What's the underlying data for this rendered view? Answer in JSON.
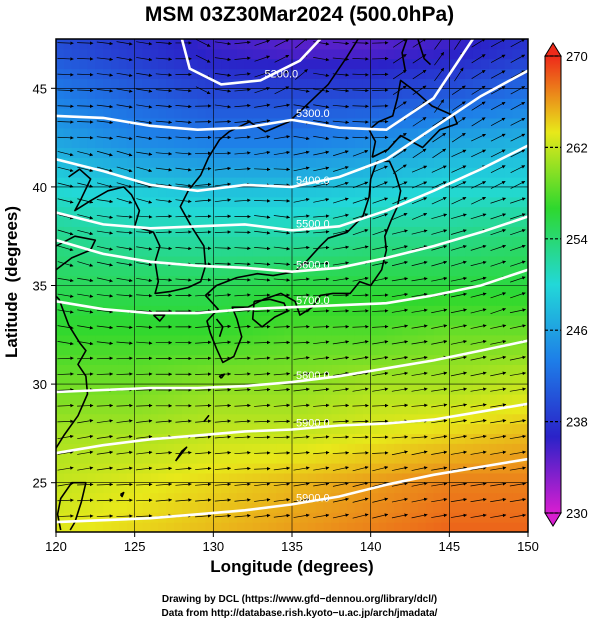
{
  "chart_data": {
    "type": "heatmap",
    "title": "MSM 03Z30Mar2024 (500.0hPa)",
    "xlabel": "Longitude (degrees)",
    "ylabel": "Latitude  (degrees)",
    "xlim": [
      120,
      150
    ],
    "ylim": [
      22.5,
      47.5
    ],
    "x_ticks": [
      120,
      125,
      130,
      135,
      140,
      145,
      150
    ],
    "y_ticks": [
      25,
      30,
      35,
      40,
      45
    ],
    "grid": true,
    "field": "temperature",
    "colorbar": {
      "min": 230,
      "max": 270,
      "ticks": [
        230,
        238,
        246,
        254,
        262,
        270
      ],
      "colors": [
        "#d81ed0",
        "#2a22c8",
        "#1e7ee8",
        "#22d8d8",
        "#2ed82e",
        "#e8e81a",
        "#ee2a1a"
      ]
    },
    "temperature_field": [
      {
        "lat": 47.0,
        "values": [
          240,
          238,
          236,
          235,
          235,
          236,
          238
        ]
      },
      {
        "lat": 45.0,
        "values": [
          243,
          241,
          239,
          239,
          239,
          240,
          242
        ]
      },
      {
        "lat": 42.5,
        "values": [
          246,
          244,
          243,
          243,
          244,
          246,
          247
        ]
      },
      {
        "lat": 40.0,
        "values": [
          250,
          249,
          248,
          248,
          249,
          250,
          250
        ]
      },
      {
        "lat": 37.5,
        "values": [
          253,
          252,
          252,
          252,
          253,
          253,
          254
        ]
      },
      {
        "lat": 35.0,
        "values": [
          255,
          255,
          255,
          256,
          256,
          256,
          256
        ]
      },
      {
        "lat": 32.5,
        "values": [
          257,
          257,
          257,
          258,
          258,
          259,
          259
        ]
      },
      {
        "lat": 30.0,
        "values": [
          259,
          259,
          260,
          260,
          261,
          261,
          262
        ]
      },
      {
        "lat": 27.5,
        "values": [
          261,
          261,
          262,
          262,
          263,
          264,
          265
        ]
      },
      {
        "lat": 25.0,
        "values": [
          262,
          263,
          264,
          265,
          266,
          267,
          267
        ]
      },
      {
        "lat": 22.5,
        "values": [
          263,
          264,
          265,
          266,
          267,
          268,
          268
        ]
      }
    ],
    "field_lons": [
      120,
      125,
      130,
      135,
      140,
      145,
      150
    ],
    "height_contours": [
      {
        "label": "5200.0",
        "points": [
          [
            128.0,
            47.5
          ],
          [
            128.5,
            46.0
          ],
          [
            130.5,
            45.2
          ],
          [
            133.0,
            45.4
          ],
          [
            135.5,
            46.4
          ],
          [
            136.8,
            47.5
          ]
        ]
      },
      {
        "label": "5300.0",
        "points": [
          [
            120.0,
            43.6
          ],
          [
            123.0,
            43.5
          ],
          [
            126.0,
            43.1
          ],
          [
            129.0,
            42.9
          ],
          [
            132.0,
            43.0
          ],
          [
            135.0,
            43.4
          ],
          [
            138.0,
            43.0
          ],
          [
            141.0,
            42.9
          ],
          [
            144.0,
            44.5
          ],
          [
            146.5,
            47.5
          ]
        ]
      },
      {
        "label": "5400.0",
        "points": [
          [
            120.0,
            41.4
          ],
          [
            123.0,
            40.8
          ],
          [
            126.0,
            40.1
          ],
          [
            129.0,
            39.8
          ],
          [
            132.0,
            40.1
          ],
          [
            135.0,
            40.0
          ],
          [
            138.0,
            40.5
          ],
          [
            141.0,
            41.4
          ],
          [
            144.0,
            43.0
          ],
          [
            147.0,
            44.6
          ],
          [
            150.0,
            45.9
          ]
        ]
      },
      {
        "label": "5500.0",
        "points": [
          [
            120.0,
            38.7
          ],
          [
            123.0,
            38.1
          ],
          [
            126.0,
            37.9
          ],
          [
            129.0,
            38.0
          ],
          [
            132.0,
            38.1
          ],
          [
            135.0,
            37.8
          ],
          [
            138.0,
            38.0
          ],
          [
            141.0,
            38.8
          ],
          [
            144.0,
            39.8
          ],
          [
            147.0,
            40.9
          ],
          [
            150.0,
            42.1
          ]
        ]
      },
      {
        "label": "5600.0",
        "points": [
          [
            120.0,
            37.3
          ],
          [
            123.0,
            36.6
          ],
          [
            126.0,
            36.2
          ],
          [
            129.0,
            36.0
          ],
          [
            132.0,
            35.9
          ],
          [
            135.0,
            35.7
          ],
          [
            138.0,
            35.9
          ],
          [
            141.0,
            36.4
          ],
          [
            144.0,
            37.0
          ],
          [
            147.0,
            37.7
          ],
          [
            150.0,
            38.5
          ]
        ]
      },
      {
        "label": "5700.0",
        "points": [
          [
            120.0,
            34.2
          ],
          [
            123.0,
            33.8
          ],
          [
            126.0,
            33.6
          ],
          [
            129.0,
            33.6
          ],
          [
            132.0,
            33.8
          ],
          [
            135.0,
            33.9
          ],
          [
            138.0,
            34.0
          ],
          [
            141.0,
            34.1
          ],
          [
            144.0,
            34.5
          ],
          [
            147.0,
            35.0
          ],
          [
            150.0,
            35.8
          ]
        ]
      },
      {
        "label": "5800.0",
        "points": [
          [
            120.0,
            29.6
          ],
          [
            123.0,
            29.7
          ],
          [
            126.0,
            29.8
          ],
          [
            129.0,
            29.8
          ],
          [
            132.0,
            29.9
          ],
          [
            135.0,
            30.1
          ],
          [
            138.0,
            30.4
          ],
          [
            141.0,
            30.8
          ],
          [
            144.0,
            31.2
          ],
          [
            147.0,
            31.7
          ],
          [
            150.0,
            32.2
          ]
        ]
      },
      {
        "label": "5900.0",
        "points": [
          [
            120.0,
            26.5
          ],
          [
            123.0,
            26.9
          ],
          [
            126.0,
            27.2
          ],
          [
            129.0,
            27.4
          ],
          [
            132.0,
            27.6
          ],
          [
            135.0,
            27.7
          ],
          [
            138.0,
            27.9
          ],
          [
            141.0,
            28.0
          ],
          [
            144.0,
            28.2
          ],
          [
            147.0,
            28.6
          ],
          [
            150.0,
            29.0
          ]
        ]
      },
      {
        "label": "5900.0",
        "points": [
          [
            120.0,
            23.0
          ],
          [
            123.0,
            23.1
          ],
          [
            126.0,
            23.2
          ],
          [
            129.0,
            23.4
          ],
          [
            132.0,
            23.6
          ],
          [
            135.0,
            23.9
          ],
          [
            138.0,
            24.3
          ],
          [
            141.0,
            24.9
          ],
          [
            144.0,
            25.4
          ],
          [
            147.0,
            25.8
          ],
          [
            150.0,
            26.2
          ]
        ]
      }
    ],
    "coastline": [
      [
        [
          129.5,
          34.5
        ],
        [
          130.2,
          35.0
        ],
        [
          131.5,
          35.4
        ],
        [
          132.8,
          35.6
        ],
        [
          133.8,
          35.5
        ],
        [
          135.2,
          35.7
        ],
        [
          136.0,
          36.3
        ],
        [
          136.8,
          37.0
        ],
        [
          137.3,
          37.4
        ],
        [
          138.5,
          37.7
        ],
        [
          139.5,
          38.5
        ],
        [
          139.9,
          39.5
        ],
        [
          140.0,
          40.4
        ],
        [
          140.4,
          41.3
        ],
        [
          141.2,
          41.3
        ],
        [
          141.6,
          40.6
        ],
        [
          141.9,
          39.8
        ],
        [
          141.7,
          39.0
        ],
        [
          141.3,
          38.3
        ],
        [
          140.9,
          37.5
        ],
        [
          141.0,
          36.8
        ],
        [
          140.7,
          35.8
        ],
        [
          140.0,
          35.0
        ],
        [
          139.3,
          35.2
        ],
        [
          138.7,
          34.6
        ],
        [
          137.6,
          34.6
        ],
        [
          136.8,
          34.5
        ],
        [
          136.3,
          33.9
        ],
        [
          135.5,
          33.5
        ],
        [
          135.2,
          34.2
        ],
        [
          134.3,
          34.6
        ],
        [
          133.2,
          34.3
        ],
        [
          132.2,
          33.9
        ],
        [
          131.2,
          33.9
        ],
        [
          131.5,
          33.3
        ],
        [
          131.8,
          32.4
        ],
        [
          131.3,
          31.4
        ],
        [
          130.6,
          31.1
        ],
        [
          130.2,
          31.8
        ],
        [
          129.8,
          32.6
        ],
        [
          129.6,
          33.2
        ],
        [
          130.3,
          33.8
        ],
        [
          129.5,
          34.5
        ]
      ],
      [
        [
          140.1,
          41.5
        ],
        [
          140.3,
          42.3
        ],
        [
          139.9,
          42.9
        ],
        [
          140.5,
          43.3
        ],
        [
          141.4,
          43.6
        ],
        [
          141.7,
          44.5
        ],
        [
          141.9,
          45.4
        ],
        [
          142.9,
          44.8
        ],
        [
          143.9,
          44.1
        ],
        [
          145.3,
          43.6
        ],
        [
          145.5,
          43.2
        ],
        [
          144.4,
          42.9
        ],
        [
          143.3,
          42.0
        ],
        [
          141.9,
          42.6
        ],
        [
          141.1,
          41.9
        ],
        [
          140.1,
          41.5
        ]
      ],
      [
        [
          132.6,
          34.2
        ],
        [
          133.6,
          34.3
        ],
        [
          134.5,
          34.1
        ],
        [
          134.7,
          33.7
        ],
        [
          133.9,
          33.4
        ],
        [
          133.1,
          32.9
        ],
        [
          132.5,
          33.3
        ],
        [
          132.6,
          34.2
        ]
      ],
      [
        [
          120.8,
          40.5
        ],
        [
          121.5,
          40.9
        ],
        [
          122.2,
          40.4
        ],
        [
          121.6,
          39.4
        ],
        [
          121.2,
          38.8
        ],
        [
          122.2,
          39.3
        ],
        [
          123.3,
          39.8
        ],
        [
          124.3,
          40.0
        ],
        [
          124.8,
          39.6
        ],
        [
          125.3,
          38.8
        ],
        [
          125.0,
          38.0
        ],
        [
          126.2,
          37.7
        ],
        [
          126.6,
          37.0
        ],
        [
          126.3,
          36.2
        ],
        [
          126.5,
          35.2
        ],
        [
          126.3,
          34.6
        ],
        [
          127.3,
          34.7
        ],
        [
          128.4,
          34.9
        ],
        [
          129.2,
          35.2
        ],
        [
          129.5,
          36.0
        ],
        [
          129.4,
          37.0
        ],
        [
          128.6,
          38.0
        ],
        [
          127.9,
          39.0
        ],
        [
          128.4,
          39.8
        ],
        [
          129.2,
          40.6
        ],
        [
          129.7,
          41.5
        ],
        [
          130.4,
          42.4
        ],
        [
          131.0,
          42.8
        ],
        [
          132.3,
          43.3
        ],
        [
          133.3,
          42.8
        ],
        [
          134.8,
          43.3
        ],
        [
          136.0,
          44.2
        ],
        [
          137.3,
          45.2
        ],
        [
          138.5,
          46.6
        ],
        [
          139.2,
          47.5
        ]
      ],
      [
        [
          120.0,
          37.0
        ],
        [
          121.2,
          37.5
        ],
        [
          122.5,
          37.3
        ],
        [
          122.2,
          36.8
        ],
        [
          121.0,
          36.4
        ],
        [
          120.0,
          35.8
        ],
        [
          119.3,
          35.0
        ],
        [
          120.2,
          34.3
        ],
        [
          120.8,
          33.0
        ],
        [
          121.5,
          32.1
        ],
        [
          121.9,
          31.7
        ],
        [
          121.4,
          31.0
        ],
        [
          121.9,
          30.4
        ],
        [
          122.0,
          29.5
        ],
        [
          121.4,
          28.4
        ],
        [
          120.5,
          27.4
        ],
        [
          119.8,
          26.5
        ]
      ],
      [
        [
          120.3,
          22.6
        ],
        [
          120.1,
          23.4
        ],
        [
          120.3,
          24.2
        ],
        [
          121.0,
          25.0
        ],
        [
          121.9,
          25.0
        ],
        [
          121.6,
          24.0
        ],
        [
          121.2,
          23.0
        ],
        [
          120.9,
          22.6
        ]
      ],
      [
        [
          142.2,
          45.9
        ],
        [
          142.0,
          46.8
        ],
        [
          142.3,
          47.5
        ]
      ],
      [
        [
          143.0,
          47.5
        ],
        [
          143.4,
          46.5
        ],
        [
          143.8,
          46.2
        ]
      ],
      [
        [
          130.4,
          32.4
        ],
        [
          130.6,
          32.9
        ],
        [
          130.2,
          33.3
        ]
      ],
      [
        [
          126.2,
          33.5
        ],
        [
          126.9,
          33.5
        ],
        [
          126.6,
          33.2
        ],
        [
          126.2,
          33.5
        ]
      ],
      [
        [
          127.6,
          26.1
        ],
        [
          128.0,
          26.6
        ],
        [
          128.3,
          26.8
        ],
        [
          127.9,
          26.4
        ],
        [
          127.6,
          26.1
        ]
      ],
      [
        [
          129.4,
          28.1
        ],
        [
          129.7,
          28.4
        ],
        [
          129.5,
          28.2
        ],
        [
          129.4,
          28.1
        ]
      ],
      [
        [
          130.5,
          30.3
        ],
        [
          130.7,
          30.5
        ],
        [
          130.4,
          30.4
        ],
        [
          130.5,
          30.3
        ]
      ],
      [
        [
          124.1,
          24.4
        ],
        [
          124.3,
          24.5
        ],
        [
          124.2,
          24.3
        ],
        [
          124.1,
          24.4
        ]
      ]
    ]
  },
  "credits": {
    "line1": "Drawing by DCL (https://www.gfd−dennou.org/library/dcl/)",
    "line2": "Data from http://database.rish.kyoto−u.ac.jp/arch/jmadata/"
  }
}
